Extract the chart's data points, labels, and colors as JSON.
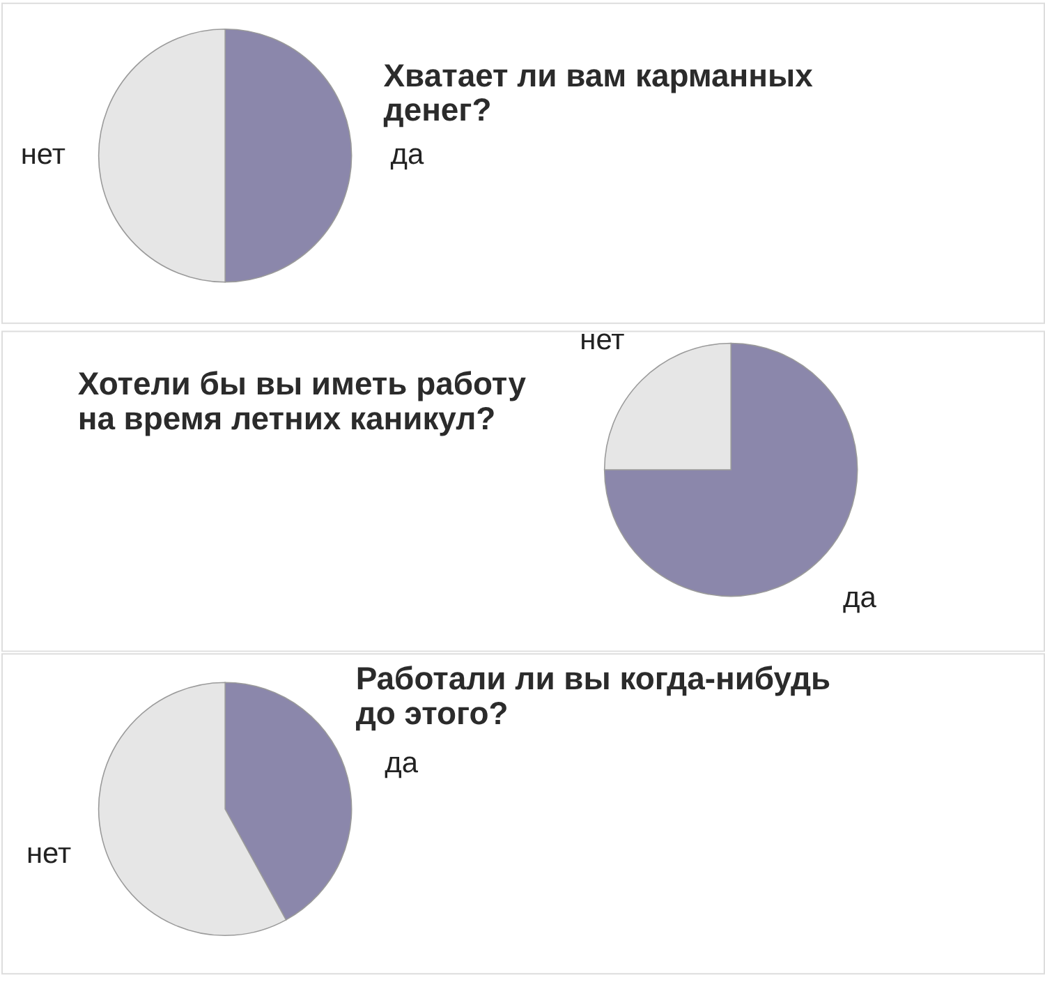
{
  "chart_data": [
    {
      "type": "pie",
      "title": "Хватает ли вам карманных денег?",
      "categories": [
        "да",
        "нет"
      ],
      "values": [
        50,
        50
      ],
      "colors": [
        "#8b87ab",
        "#e6e6e6"
      ]
    },
    {
      "type": "pie",
      "title": "Хотели бы вы иметь работу на время летних каникул?",
      "categories": [
        "да",
        "нет"
      ],
      "values": [
        75,
        25
      ],
      "colors": [
        "#8b87ab",
        "#e6e6e6"
      ]
    },
    {
      "type": "pie",
      "title": "Работали ли вы когда-нибудь до этого?",
      "categories": [
        "да",
        "нет"
      ],
      "values": [
        42,
        58
      ],
      "colors": [
        "#8b87ab",
        "#e6e6e6"
      ]
    }
  ]
}
